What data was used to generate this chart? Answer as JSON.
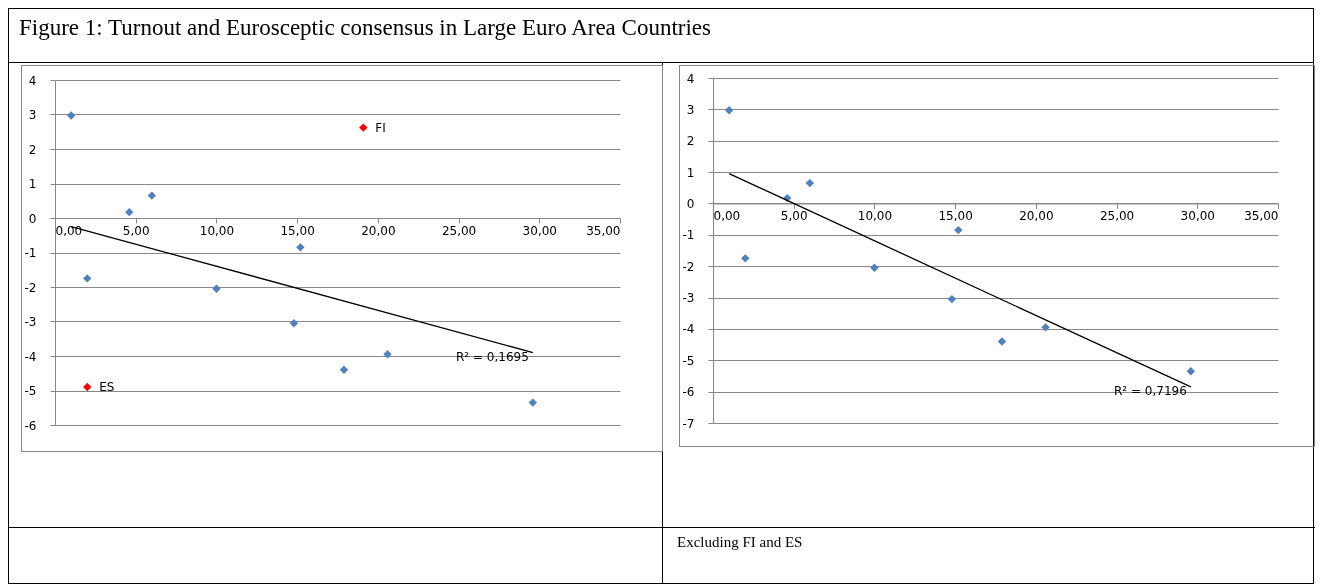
{
  "chart_data": [
    {
      "type": "scatter",
      "title": "Figure 1: Turnout and Eurosceptic consensus in Large  Euro Area Countries",
      "series": [
        {
          "marker": "diamond",
          "x": [
            1.0,
            2.0,
            4.6,
            6.0,
            10.0,
            15.2,
            14.8,
            17.9,
            20.6,
            29.6,
            19.1,
            2.0
          ],
          "values": [
            2.97,
            -1.75,
            0.17,
            0.65,
            -2.05,
            -0.85,
            -3.05,
            -4.4,
            -3.95,
            -5.35,
            2.62,
            -4.9
          ],
          "colors": [
            "#4f81bd",
            "#4f81bd",
            "#4f81bd",
            "#4f81bd",
            "#4f81bd",
            "#4f81bd",
            "#4f81bd",
            "#4f81bd",
            "#4f81bd",
            "#4f81bd",
            "#ff0000",
            "#ff0000"
          ]
        },
        {
          "type": "line",
          "x": [
            1.0,
            29.6
          ],
          "values": [
            -0.25,
            -3.9
          ],
          "color": "#000000"
        }
      ],
      "xlim": [
        0,
        35
      ],
      "xticks": [
        {
          "value": 0,
          "label": "0,00"
        },
        {
          "value": 5,
          "label": "5,00"
        },
        {
          "value": 10,
          "label": "10,00"
        },
        {
          "value": 15,
          "label": "15,00"
        },
        {
          "value": 20,
          "label": "20,00"
        },
        {
          "value": 25,
          "label": "25,00"
        },
        {
          "value": 30,
          "label": "30,00"
        },
        {
          "value": 35,
          "label": "35,00"
        }
      ],
      "ylim": [
        -6,
        4
      ],
      "yticks": [
        -6,
        -5,
        -4,
        -3,
        -2,
        -1,
        0,
        1,
        2,
        3,
        4
      ],
      "grid": "y",
      "annotations": [
        {
          "text": "FI",
          "x": 19.1,
          "y": 2.62
        },
        {
          "text": "ES",
          "x": 2.0,
          "y": -4.9
        },
        {
          "text": "R² = 0,1695",
          "x": 29.6,
          "y": -3.9
        }
      ]
    },
    {
      "type": "scatter",
      "series": [
        {
          "marker": "diamond",
          "x": [
            1.0,
            2.0,
            4.6,
            6.0,
            10.0,
            15.2,
            14.8,
            17.9,
            20.6,
            29.6
          ],
          "values": [
            2.97,
            -1.75,
            0.17,
            0.65,
            -2.05,
            -0.85,
            -3.05,
            -4.4,
            -3.95,
            -5.35
          ],
          "color": "#4f81bd"
        },
        {
          "type": "line",
          "x": [
            1.0,
            29.6
          ],
          "values": [
            0.95,
            -5.85
          ],
          "color": "#000000"
        }
      ],
      "xlim": [
        0,
        35
      ],
      "xticks": [
        {
          "value": 0,
          "label": "0,00"
        },
        {
          "value": 5,
          "label": "5,00"
        },
        {
          "value": 10,
          "label": "10,00"
        },
        {
          "value": 15,
          "label": "15,00"
        },
        {
          "value": 20,
          "label": "20,00"
        },
        {
          "value": 25,
          "label": "25,00"
        },
        {
          "value": 30,
          "label": "30,00"
        },
        {
          "value": 35,
          "label": "35,00"
        }
      ],
      "ylim": [
        -7,
        4
      ],
      "yticks": [
        -7,
        -6,
        -5,
        -4,
        -3,
        -2,
        -1,
        0,
        1,
        2,
        3,
        4
      ],
      "grid": "y",
      "annotations": [
        {
          "text": "R² = 0,7196",
          "x": 29.6,
          "y": -5.85
        },
        "Excluding FI and ES"
      ]
    }
  ]
}
